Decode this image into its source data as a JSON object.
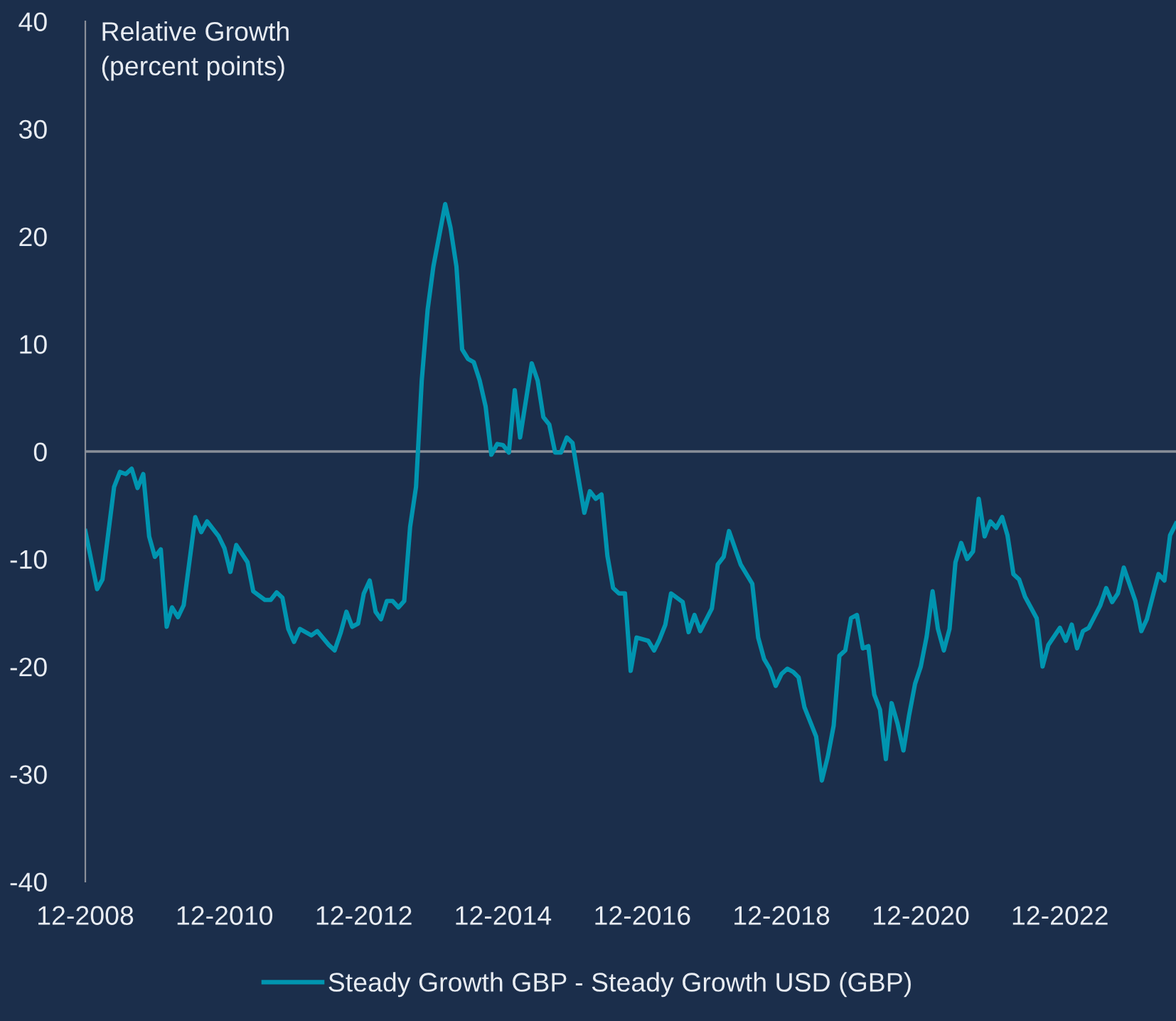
{
  "chart_data": {
    "type": "line",
    "ylabel": "Relative Growth\n(percent points)",
    "x": [
      "2008-12",
      "2009-02",
      "2009-03",
      "2009-05",
      "2009-06",
      "2009-07",
      "2009-08",
      "2009-09",
      "2009-10",
      "2009-11",
      "2009-12",
      "2010-01",
      "2010-02",
      "2010-03",
      "2010-04",
      "2010-05",
      "2010-07",
      "2010-08",
      "2010-09",
      "2010-11",
      "2010-12",
      "2011-01",
      "2011-02",
      "2011-04",
      "2011-05",
      "2011-07",
      "2011-08",
      "2011-09",
      "2011-10",
      "2011-11",
      "2011-12",
      "2012-01",
      "2012-03",
      "2012-04",
      "2012-06",
      "2012-07",
      "2012-08",
      "2012-09",
      "2012-10",
      "2012-11",
      "2012-12",
      "2013-01",
      "2013-02",
      "2013-03",
      "2013-04",
      "2013-05",
      "2013-06",
      "2013-07",
      "2013-08",
      "2013-09",
      "2013-10",
      "2013-11",
      "2013-12",
      "2014-02",
      "2014-03",
      "2014-04",
      "2014-05",
      "2014-06",
      "2014-07",
      "2014-08",
      "2014-09",
      "2014-10",
      "2014-11",
      "2014-12",
      "2015-01",
      "2015-02",
      "2015-03",
      "2015-05",
      "2015-06",
      "2015-07",
      "2015-08",
      "2015-09",
      "2015-10",
      "2015-11",
      "2015-12",
      "2016-01",
      "2016-02",
      "2016-03",
      "2016-04",
      "2016-05",
      "2016-06",
      "2016-07",
      "2016-08",
      "2016-09",
      "2016-10",
      "2016-11",
      "2017-01",
      "2017-02",
      "2017-03",
      "2017-04",
      "2017-05",
      "2017-07",
      "2017-08",
      "2017-09",
      "2017-10",
      "2017-12",
      "2018-01",
      "2018-02",
      "2018-03",
      "2018-05",
      "2018-07",
      "2018-08",
      "2018-09",
      "2018-10",
      "2018-11",
      "2018-12",
      "2019-01",
      "2019-02",
      "2019-03",
      "2019-04",
      "2019-06",
      "2019-07",
      "2019-08",
      "2019-09",
      "2019-10",
      "2019-11",
      "2019-12",
      "2020-01",
      "2020-02",
      "2020-03",
      "2020-04",
      "2020-05",
      "2020-06",
      "2020-07",
      "2020-08",
      "2020-09",
      "2020-10",
      "2020-11",
      "2020-12",
      "2021-01",
      "2021-02",
      "2021-03",
      "2021-04",
      "2021-05",
      "2021-06",
      "2021-07",
      "2021-08",
      "2021-09",
      "2021-10",
      "2021-11",
      "2021-12",
      "2022-01",
      "2022-02",
      "2022-03",
      "2022-04",
      "2022-05",
      "2022-06",
      "2022-08",
      "2022-09",
      "2022-10",
      "2022-12",
      "2023-01",
      "2023-02",
      "2023-03",
      "2023-04",
      "2023-05",
      "2023-07",
      "2023-08",
      "2023-09",
      "2023-10",
      "2023-11",
      "2024-01",
      "2024-02",
      "2024-03",
      "2024-05",
      "2024-06",
      "2024-07",
      "2024-08"
    ],
    "series": [
      {
        "name": "Steady Growth GBP - Steady Growth USD (GBP)",
        "color": "#0095b0",
        "values": [
          -7.4,
          -12.8,
          -11.9,
          -3.3,
          -1.9,
          -2.1,
          -1.6,
          -3.4,
          -2.1,
          -7.9,
          -9.8,
          -9.1,
          -16.3,
          -14.5,
          -15.4,
          -14.3,
          -6.1,
          -7.5,
          -6.5,
          -7.9,
          -9.0,
          -11.2,
          -8.7,
          -10.3,
          -13.0,
          -13.8,
          -13.8,
          -13.1,
          -13.6,
          -16.5,
          -17.7,
          -16.5,
          -17.1,
          -16.7,
          -18.0,
          -18.5,
          -16.9,
          -14.9,
          -16.3,
          -16.0,
          -13.2,
          -12.0,
          -14.9,
          -15.6,
          -13.9,
          -13.9,
          -14.5,
          -13.9,
          -7.0,
          -3.3,
          6.6,
          13.2,
          17.2,
          23.0,
          20.8,
          17.2,
          9.5,
          8.6,
          8.3,
          6.6,
          4.2,
          -0.3,
          0.7,
          0.6,
          -0.1,
          5.7,
          1.3,
          8.2,
          6.6,
          3.2,
          2.5,
          -0.1,
          -0.1,
          1.3,
          0.8,
          -2.5,
          -5.7,
          -3.7,
          -4.4,
          -4.0,
          -9.7,
          -12.7,
          -13.2,
          -13.2,
          -20.4,
          -17.3,
          -17.6,
          -18.5,
          -17.5,
          -16.1,
          -13.2,
          -14.0,
          -16.8,
          -15.2,
          -16.7,
          -14.6,
          -10.5,
          -9.8,
          -7.4,
          -10.5,
          -12.3,
          -17.3,
          -19.3,
          -20.2,
          -21.8,
          -20.7,
          -20.2,
          -20.5,
          -21.0,
          -23.8,
          -26.5,
          -30.6,
          -28.4,
          -25.5,
          -19.0,
          -18.5,
          -15.5,
          -15.2,
          -18.3,
          -18.1,
          -22.6,
          -24.0,
          -28.6,
          -23.4,
          -25.3,
          -27.8,
          -24.5,
          -21.6,
          -20.0,
          -17.2,
          -13.0,
          -16.5,
          -18.5,
          -16.5,
          -10.3,
          -8.5,
          -10.0,
          -9.3,
          -4.4,
          -7.9,
          -6.5,
          -7.1,
          -6.1,
          -7.8,
          -11.4,
          -11.9,
          -13.5,
          -15.5,
          -20.0,
          -18.0,
          -16.4,
          -17.6,
          -16.1,
          -18.3,
          -16.7,
          -16.4,
          -14.3,
          -12.7,
          -14.0,
          -13.2,
          -10.8,
          -13.9,
          -16.7,
          -15.6,
          -11.4,
          -12.0,
          -7.8,
          -6.7
        ]
      }
    ],
    "xlim": [
      "2008-12",
      "2024-08"
    ],
    "xticks": [
      {
        "value": "2008-12",
        "label": "12-2008"
      },
      {
        "value": "2010-12",
        "label": "12-2010"
      },
      {
        "value": "2012-12",
        "label": "12-2012"
      },
      {
        "value": "2014-12",
        "label": "12-2014"
      },
      {
        "value": "2016-12",
        "label": "12-2016"
      },
      {
        "value": "2018-12",
        "label": "12-2018"
      },
      {
        "value": "2020-12",
        "label": "12-2020"
      },
      {
        "value": "2022-12",
        "label": "12-2022"
      }
    ],
    "ylim": [
      -40,
      40
    ],
    "yticks": [
      -40,
      -30,
      -20,
      -10,
      0,
      10,
      20,
      30,
      40
    ],
    "ref_lines": [
      {
        "axis": "y",
        "value": 0,
        "color": "#8a8f99"
      }
    ],
    "grid": false,
    "legend": "bottom",
    "marker": "none",
    "line_style": "solid"
  }
}
